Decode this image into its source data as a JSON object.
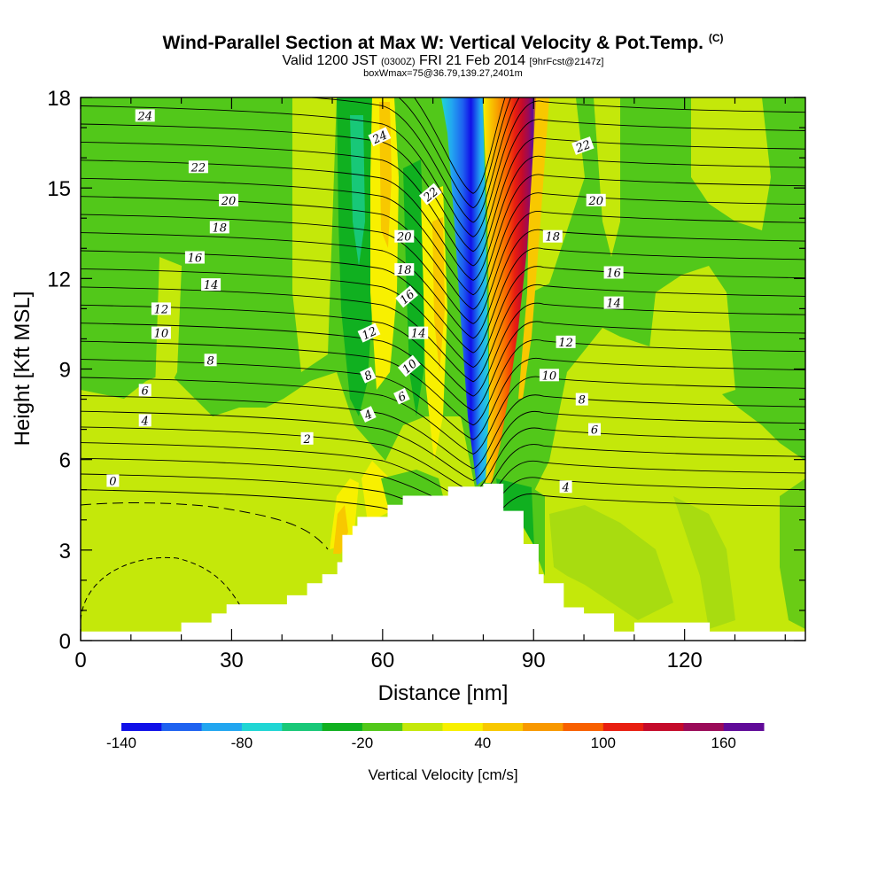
{
  "header": {
    "title": "Wind-Parallel Section at Max W: Vertical Velocity & Pot.Temp.",
    "copyright": "(C)",
    "valid_main": "Valid 1200 JST",
    "valid_utc": "(0300Z)",
    "valid_date": "FRI 21 Feb 2014",
    "forecast": "[9hrFcst@2147z]",
    "box_info": "boxWmax=75@36.79,139.27,2401m"
  },
  "chart_data": {
    "type": "heatmap",
    "title": "Wind-Parallel Section at Max W: Vertical Velocity & Pot.Temp.",
    "xlabel": "Distance [nm]",
    "ylabel": "Height [Kft MSL]",
    "xlim": [
      0,
      144
    ],
    "ylim": [
      0,
      18
    ],
    "xticks": [
      0,
      30,
      60,
      90,
      120
    ],
    "yticks": [
      0,
      3,
      6,
      9,
      12,
      15,
      18
    ],
    "terrain_steps": [
      [
        0,
        0.3
      ],
      [
        20,
        0.3
      ],
      [
        20,
        0.6
      ],
      [
        26,
        0.6
      ],
      [
        26,
        0.9
      ],
      [
        29,
        0.9
      ],
      [
        29,
        1.2
      ],
      [
        41,
        1.2
      ],
      [
        41,
        1.5
      ],
      [
        45,
        1.5
      ],
      [
        45,
        1.9
      ],
      [
        48,
        1.9
      ],
      [
        48,
        2.2
      ],
      [
        51,
        2.2
      ],
      [
        51,
        2.6
      ],
      [
        52,
        2.6
      ],
      [
        52,
        3.5
      ],
      [
        54,
        3.5
      ],
      [
        54,
        3.8
      ],
      [
        55,
        3.8
      ],
      [
        55,
        4.1
      ],
      [
        61,
        4.1
      ],
      [
        61,
        4.5
      ],
      [
        64,
        4.5
      ],
      [
        64,
        4.8
      ],
      [
        73,
        4.8
      ],
      [
        73,
        5.1
      ],
      [
        80,
        5.1
      ],
      [
        80,
        5.2
      ],
      [
        84,
        5.2
      ],
      [
        84,
        4.3
      ],
      [
        88,
        4.3
      ],
      [
        88,
        3.2
      ],
      [
        91,
        3.2
      ],
      [
        91,
        2.2
      ],
      [
        92,
        2.2
      ],
      [
        92,
        1.9
      ],
      [
        96,
        1.9
      ],
      [
        96,
        1.1
      ],
      [
        100,
        1.1
      ],
      [
        100,
        0.9
      ],
      [
        106,
        0.9
      ],
      [
        106,
        0.3
      ],
      [
        110,
        0.3
      ],
      [
        110,
        0.6
      ],
      [
        125,
        0.6
      ],
      [
        125,
        0.3
      ],
      [
        144,
        0.3
      ]
    ],
    "contour_labels": [
      {
        "text": "24",
        "x": 12.8,
        "y": 17.4,
        "angle": 0
      },
      {
        "text": "22",
        "x": 23.4,
        "y": 15.7,
        "angle": 0
      },
      {
        "text": "20",
        "x": 29.4,
        "y": 14.6,
        "angle": 0
      },
      {
        "text": "18",
        "x": 27.6,
        "y": 13.7,
        "angle": 0
      },
      {
        "text": "16",
        "x": 22.7,
        "y": 12.7,
        "angle": 0
      },
      {
        "text": "14",
        "x": 25.9,
        "y": 11.8,
        "angle": 0
      },
      {
        "text": "12",
        "x": 16.0,
        "y": 11.0,
        "angle": 0
      },
      {
        "text": "10",
        "x": 16.0,
        "y": 10.2,
        "angle": 0
      },
      {
        "text": "8",
        "x": 25.8,
        "y": 9.3,
        "angle": 0
      },
      {
        "text": "6",
        "x": 12.8,
        "y": 8.3,
        "angle": 0
      },
      {
        "text": "4",
        "x": 12.8,
        "y": 7.3,
        "angle": 0
      },
      {
        "text": "2",
        "x": 45.0,
        "y": 6.7,
        "angle": 0
      },
      {
        "text": "0",
        "x": 6.4,
        "y": 5.3,
        "angle": 0
      },
      {
        "text": "24",
        "x": 59.4,
        "y": 16.7,
        "angle": -25
      },
      {
        "text": "22",
        "x": 69.5,
        "y": 14.8,
        "angle": -40
      },
      {
        "text": "20",
        "x": 64.3,
        "y": 13.4,
        "angle": 0
      },
      {
        "text": "18",
        "x": 64.3,
        "y": 12.3,
        "angle": 0
      },
      {
        "text": "16",
        "x": 64.8,
        "y": 11.4,
        "angle": -40
      },
      {
        "text": "14",
        "x": 67.1,
        "y": 10.2,
        "angle": 0
      },
      {
        "text": "12",
        "x": 57.3,
        "y": 10.2,
        "angle": -25
      },
      {
        "text": "10",
        "x": 65.3,
        "y": 9.1,
        "angle": -40
      },
      {
        "text": "8",
        "x": 57.1,
        "y": 8.8,
        "angle": -25
      },
      {
        "text": "6",
        "x": 63.8,
        "y": 8.1,
        "angle": -25
      },
      {
        "text": "4",
        "x": 57.1,
        "y": 7.5,
        "angle": -25
      },
      {
        "text": "22",
        "x": 99.8,
        "y": 16.4,
        "angle": -20
      },
      {
        "text": "20",
        "x": 102.4,
        "y": 14.6,
        "angle": 0
      },
      {
        "text": "18",
        "x": 93.8,
        "y": 13.4,
        "angle": 0
      },
      {
        "text": "16",
        "x": 105.9,
        "y": 12.2,
        "angle": 0
      },
      {
        "text": "14",
        "x": 105.9,
        "y": 11.2,
        "angle": 0
      },
      {
        "text": "12",
        "x": 96.4,
        "y": 9.9,
        "angle": 0
      },
      {
        "text": "10",
        "x": 93.1,
        "y": 8.8,
        "angle": 0
      },
      {
        "text": "8",
        "x": 99.6,
        "y": 8.0,
        "angle": 0
      },
      {
        "text": "6",
        "x": 102.1,
        "y": 7.0,
        "angle": 0
      },
      {
        "text": "4",
        "x": 96.4,
        "y": 5.1,
        "angle": 0
      }
    ]
  },
  "colorbar": {
    "title": "Vertical Velocity [cm/s]",
    "tick_labels": [
      "-140",
      "-80",
      "-20",
      "40",
      "100",
      "160"
    ],
    "colors": [
      "#1010e8",
      "#1e62f0",
      "#22a6f0",
      "#20d6d4",
      "#18c878",
      "#10b020",
      "#52c81a",
      "#c4e80a",
      "#f8f000",
      "#f8c800",
      "#f89800",
      "#f86000",
      "#e81e10",
      "#c40a2a",
      "#9a0a58",
      "#600a98"
    ]
  }
}
